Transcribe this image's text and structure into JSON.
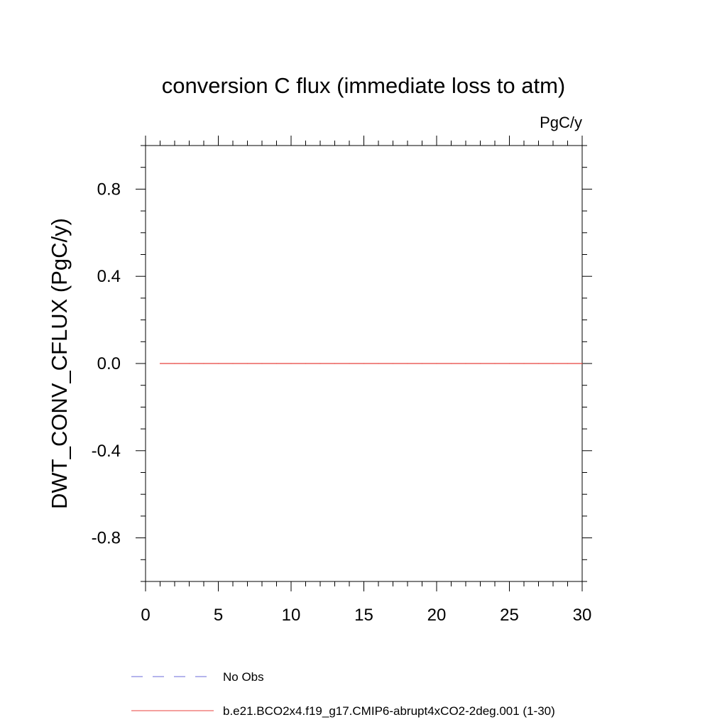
{
  "chart_data": {
    "type": "line",
    "title": "conversion C flux (immediate loss to atm)",
    "units_label": "PgC/y",
    "ylabel": "DWT_CONV_CFLUX  (PgC/y)",
    "xlabel": "",
    "xlim": [
      0,
      30
    ],
    "ylim": [
      -1.0,
      1.0
    ],
    "x_ticks": [
      0,
      5,
      10,
      15,
      20,
      25,
      30
    ],
    "x_tick_labels": [
      "0",
      "5",
      "10",
      "15",
      "20",
      "25",
      "30"
    ],
    "y_ticks": [
      0.8,
      0.4,
      0.0,
      -0.4,
      -0.8
    ],
    "y_tick_labels": [
      "0.8",
      "0.4",
      "0.0",
      "-0.4",
      "-0.8"
    ],
    "grid": false,
    "legend_position": "bottom",
    "series": [
      {
        "name": "b.e21.BCO2x4.f19_g17.CMIP6-abrupt4xCO2-2deg.001 (1-30)",
        "color": "#e8413c",
        "dash": "solid",
        "x": [
          1,
          2,
          3,
          4,
          5,
          6,
          7,
          8,
          9,
          10,
          11,
          12,
          13,
          14,
          15,
          16,
          17,
          18,
          19,
          20,
          21,
          22,
          23,
          24,
          25,
          26,
          27,
          28,
          29,
          30
        ],
        "y": [
          0,
          0,
          0,
          0,
          0,
          0,
          0,
          0,
          0,
          0,
          0,
          0,
          0,
          0,
          0,
          0,
          0,
          0,
          0,
          0,
          0,
          0,
          0,
          0,
          0,
          0,
          0,
          0,
          0,
          0
        ]
      }
    ],
    "legend": [
      {
        "label": "No Obs",
        "color": "#6a6ad8",
        "dash": "dashed"
      },
      {
        "label": "b.e21.BCO2x4.f19_g17.CMIP6-abrupt4xCO2-2deg.001 (1-30)",
        "color": "#e8413c",
        "dash": "solid"
      }
    ]
  }
}
